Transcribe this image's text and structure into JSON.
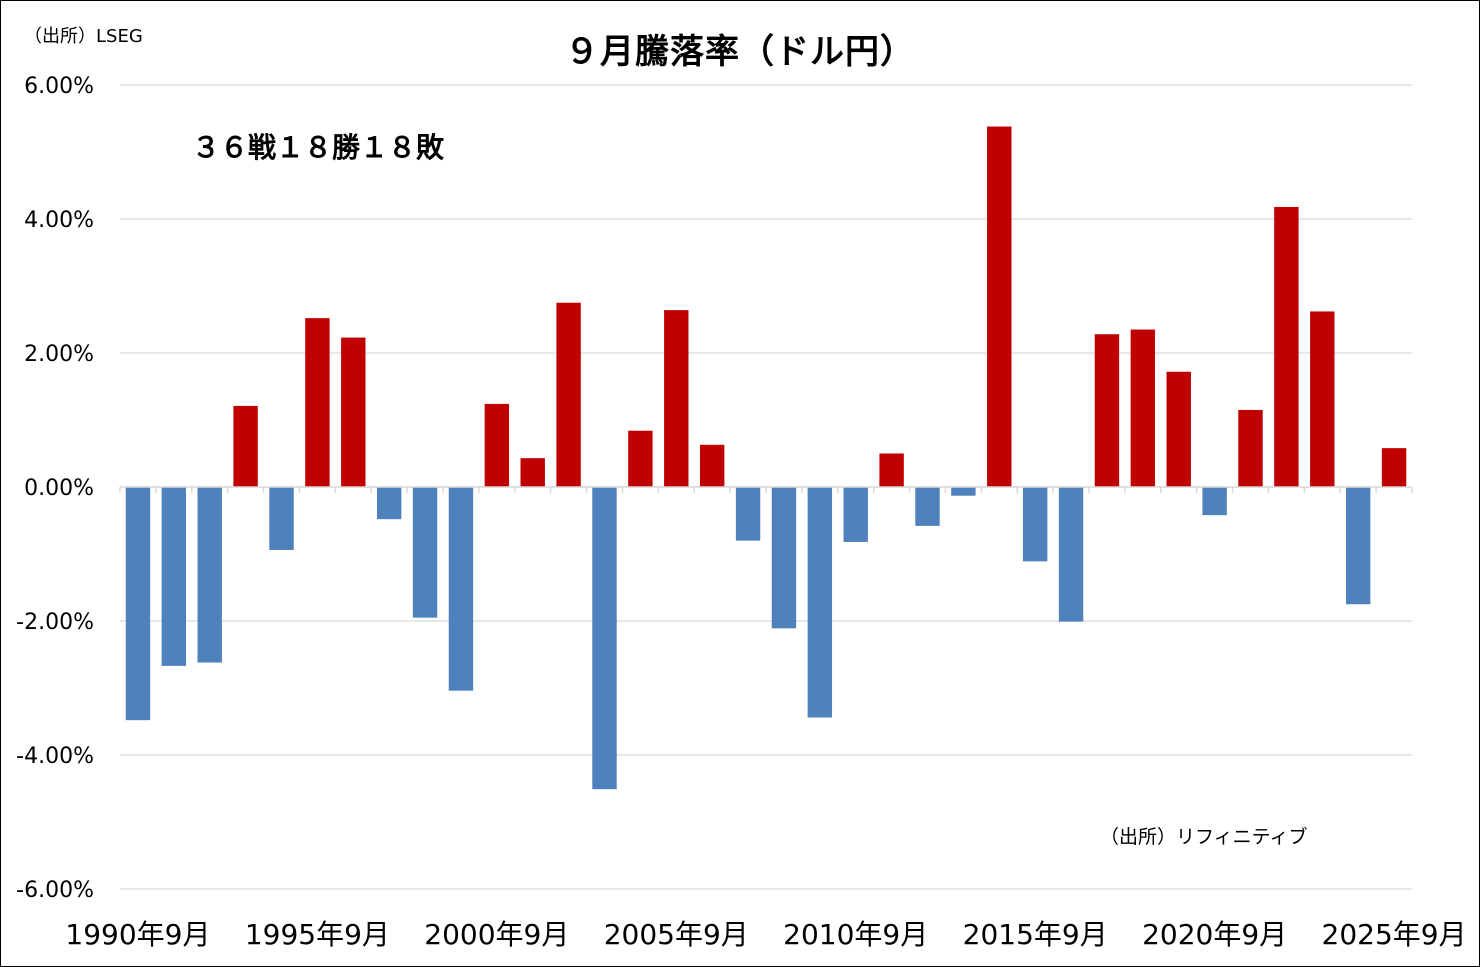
{
  "chart_data": {
    "type": "bar",
    "title": "９月騰落率（ドル円）",
    "source_top": "（出所）LSEG",
    "source_bottom": "（出所）リフィニティブ",
    "annotation": "３６戦１８勝１８敗",
    "xlabel": "",
    "ylabel": "",
    "ylim": [
      -6,
      6
    ],
    "y_ticks": [
      "6.00%",
      "4.00%",
      "2.00%",
      "0.00%",
      "-2.00%",
      "-4.00%",
      "-6.00%"
    ],
    "y_tick_values": [
      6,
      4,
      2,
      0,
      -2,
      -4,
      -6
    ],
    "x_tick_labels": [
      "1990年9月",
      "1995年9月",
      "2000年9月",
      "2005年9月",
      "2010年9月",
      "2015年9月",
      "2020年9月",
      "2025年9月"
    ],
    "x_tick_years": [
      1990,
      1995,
      2000,
      2005,
      2010,
      2015,
      2020,
      2025
    ],
    "grid": true,
    "legend": "none",
    "colors": {
      "positive": "#C00000",
      "negative": "#4F81BD",
      "grid": "#D9D9D9"
    },
    "x": [
      1990,
      1991,
      1992,
      1993,
      1994,
      1995,
      1996,
      1997,
      1998,
      1999,
      2000,
      2001,
      2002,
      2003,
      2004,
      2005,
      2006,
      2007,
      2008,
      2009,
      2010,
      2011,
      2012,
      2013,
      2014,
      2015,
      2016,
      2017,
      2018,
      2019,
      2020,
      2021,
      2022,
      2023,
      2024,
      2025
    ],
    "values": [
      -3.48,
      -2.67,
      -2.62,
      1.21,
      -0.94,
      2.52,
      2.23,
      -0.48,
      -1.95,
      -3.04,
      1.24,
      0.43,
      2.75,
      -4.51,
      0.84,
      2.64,
      0.63,
      -0.8,
      -2.11,
      -3.44,
      -0.82,
      0.5,
      -0.58,
      -0.13,
      5.38,
      -1.11,
      -2.01,
      2.28,
      2.35,
      1.72,
      -0.42,
      1.15,
      4.18,
      2.62,
      -1.75,
      0.58
    ]
  }
}
